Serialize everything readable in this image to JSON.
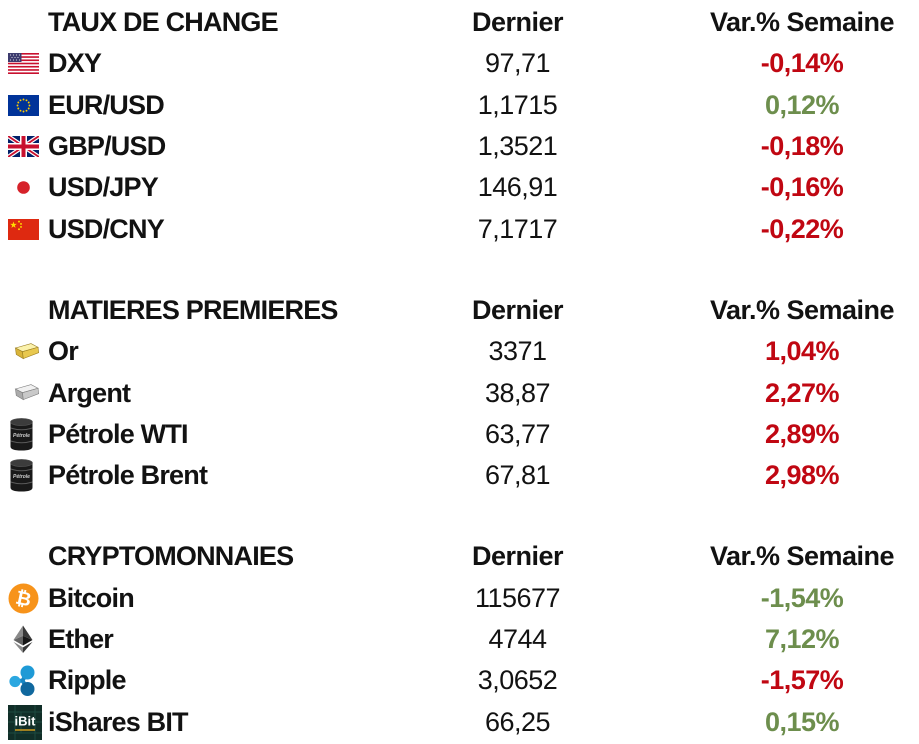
{
  "colors": {
    "red": "#C00712",
    "green": "#6D8E4D",
    "text": "#121212",
    "bitcoin_orange": "#F7931A",
    "ripple_blue": "#1E9AD6",
    "eu_blue": "#003399",
    "uk_blue": "#012169",
    "china_red": "#DE2910",
    "gold": "#E8C84F",
    "silver": "#C9C9C9"
  },
  "chart_data": {
    "type": "table",
    "columns": {
      "last": "Dernier",
      "change": "Var.% Semaine"
    },
    "sections": [
      {
        "title": "TAUX DE CHANGE",
        "rows": [
          {
            "icon": "us-flag",
            "label": "DXY",
            "last": "97,71",
            "change": "-0,14%",
            "change_color": "red"
          },
          {
            "icon": "eu-flag",
            "label": "EUR/USD",
            "last": "1,1715",
            "change": "0,12%",
            "change_color": "green"
          },
          {
            "icon": "uk-flag",
            "label": "GBP/USD",
            "last": "1,3521",
            "change": "-0,18%",
            "change_color": "red"
          },
          {
            "icon": "jp-flag",
            "label": "USD/JPY",
            "last": "146,91",
            "change": "-0,16%",
            "change_color": "red"
          },
          {
            "icon": "cn-flag",
            "label": "USD/CNY",
            "last": "7,1717",
            "change": "-0,22%",
            "change_color": "red"
          }
        ]
      },
      {
        "title": "MATIERES PREMIERES",
        "rows": [
          {
            "icon": "gold-bar",
            "label": "Or",
            "last": "3371",
            "change": "1,04%",
            "change_color": "red"
          },
          {
            "icon": "silver-bar",
            "label": "Argent",
            "last": "38,87",
            "change": "2,27%",
            "change_color": "red"
          },
          {
            "icon": "oil-barrel",
            "label": "Pétrole WTI",
            "last": "63,77",
            "change": "2,89%",
            "change_color": "red"
          },
          {
            "icon": "oil-barrel",
            "label": "Pétrole Brent",
            "last": "67,81",
            "change": "2,98%",
            "change_color": "red"
          }
        ]
      },
      {
        "title": "CRYPTOMONNAIES",
        "rows": [
          {
            "icon": "bitcoin",
            "label": "Bitcoin",
            "last": "115677",
            "change": "-1,54%",
            "change_color": "green"
          },
          {
            "icon": "ethereum",
            "label": "Ether",
            "last": "4744",
            "change": "7,12%",
            "change_color": "green"
          },
          {
            "icon": "ripple",
            "label": "Ripple",
            "last": "3,0652",
            "change": "-1,57%",
            "change_color": "red"
          },
          {
            "icon": "ishares-bit",
            "label": "iShares BIT",
            "last": "66,25",
            "change": "0,15%",
            "change_color": "green"
          }
        ]
      }
    ]
  }
}
